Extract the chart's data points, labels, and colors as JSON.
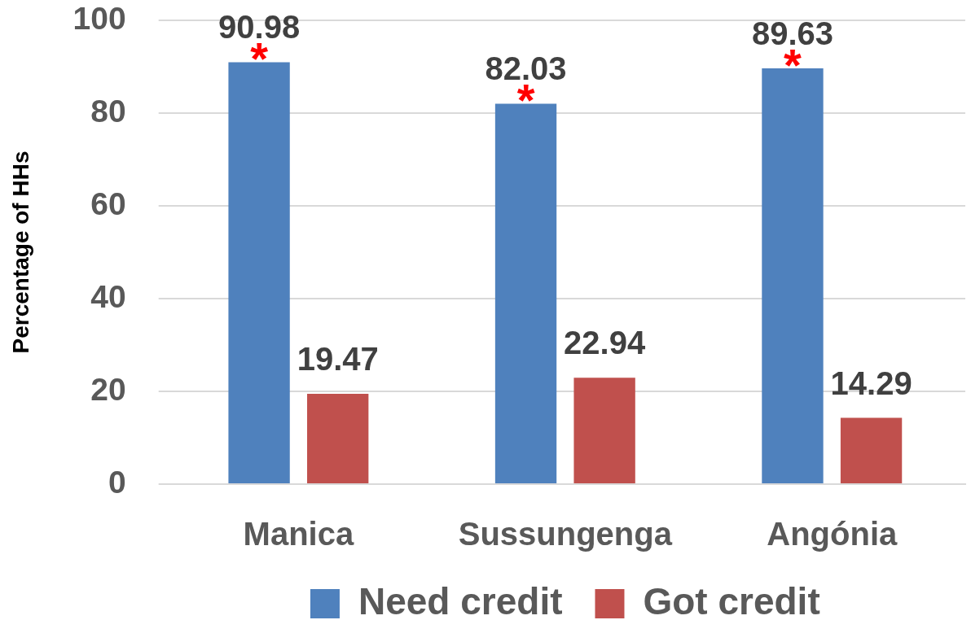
{
  "chart_data": {
    "type": "bar",
    "ylabel": "Percentage of HHs",
    "categories": [
      "Manica",
      "Sussungenga",
      "Angónia"
    ],
    "series": [
      {
        "name": "Need credit",
        "color": "#4f81bd",
        "values": [
          90.98,
          82.03,
          89.63
        ]
      },
      {
        "name": "Got credit",
        "color": "#c0504d",
        "values": [
          19.47,
          22.94,
          14.29
        ]
      }
    ],
    "ylim": [
      0,
      100
    ],
    "yticks": [
      0,
      20,
      40,
      60,
      80,
      100
    ],
    "grid": "y",
    "legend": "bottom",
    "data_labels": true,
    "annotations": [
      "*",
      "*",
      "*"
    ]
  }
}
